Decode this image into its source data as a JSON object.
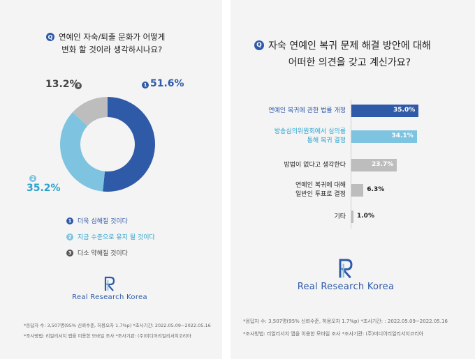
{
  "left_panel": {
    "badge": "Q",
    "question_lines": [
      "연예인 자숙/퇴출 문화가 어떻게",
      "변화 할 것이라 생각하시나요?"
    ]
  },
  "right_panel": {
    "badge": "Q",
    "question_lines": [
      "자숙 연예인 복귀 문제 해결 방안에 대해",
      "어떠한 의견을 갖고 계신가요?"
    ]
  },
  "logo": {
    "text": "Real Research Korea"
  },
  "footnote_left": [
    "*응답자 수: 3,507명(95% 신뢰수준, 허용오차 1.7%p)  *조사기간: 2022.05.09~2022.05.16",
    "*조사방법: 리얼리서치 앱을 이용한 모바일 조사  *조사기관: (주)미디어리얼리서치코리아"
  ],
  "footnote_right": [
    "*응답자 수: 3,507명(95% 신뢰수준, 허용오차 1.7%p)  *조사기간: : 2022.05.09~2022.05.16",
    "*조사방법: 리얼리서치 앱을 이용한 모바일 조사  *조사기관: (주)미디어리얼리서치코리아"
  ],
  "colors": {
    "dark_blue": "#2f5aa8",
    "light_blue": "#7ec3df",
    "gray": "#bdbdbd",
    "gray_text": "#444444",
    "accent_text": "#2aa2cc"
  },
  "chart_data": [
    {
      "type": "pie",
      "categories": [
        "더욱 심해질 것이다",
        "지금 수준으로 유지 될 것이다",
        "다소 약해질 것이다"
      ],
      "values": [
        51.6,
        35.2,
        13.2
      ],
      "value_labels": [
        "51.6%",
        "35.2%",
        "13.2%"
      ],
      "markers": [
        "1",
        "2",
        "3"
      ],
      "donut": true,
      "legend": "bottom"
    },
    {
      "type": "bar",
      "orientation": "horizontal",
      "categories": [
        [
          "연예인 복귀에 관한 법률 개정"
        ],
        [
          "방송심의위원회에서 심의를",
          "통해 복귀 결정"
        ],
        [
          "방법이 없다고 생각한다"
        ],
        [
          "연예인 복귀에 대해",
          "일반인 투표로 결정"
        ],
        [
          "기타"
        ]
      ],
      "values": [
        35.0,
        34.1,
        23.7,
        6.3,
        1.0
      ],
      "value_labels": [
        "35.0%",
        "34.1%",
        "23.7%",
        "6.3%",
        "1.0%"
      ]
    }
  ]
}
